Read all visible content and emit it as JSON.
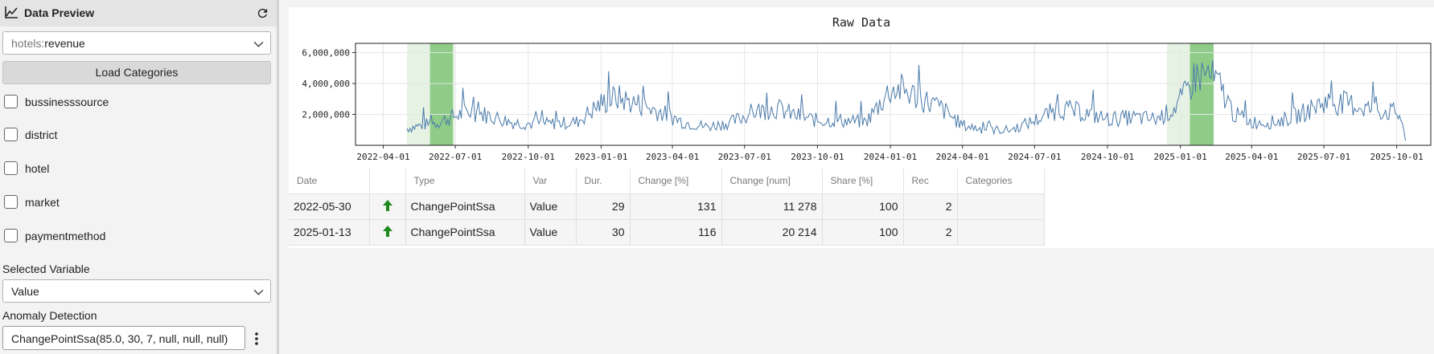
{
  "sidebar": {
    "title": "Data Preview",
    "dataset": {
      "prefix": "hotels:",
      "name": "revenue"
    },
    "load_button": "Load Categories",
    "categories": [
      {
        "label": "bussinesssource",
        "checked": false
      },
      {
        "label": "district",
        "checked": false
      },
      {
        "label": "hotel",
        "checked": false
      },
      {
        "label": "market",
        "checked": false
      },
      {
        "label": "paymentmethod",
        "checked": false
      }
    ],
    "selected_variable_label": "Selected Variable",
    "selected_variable": "Value",
    "anomaly_label": "Anomaly Detection",
    "anomaly_value": "ChangePointSsa(85.0, 30, 7, null, null, null)"
  },
  "icons": {
    "header": "line-chart-icon",
    "refresh": "refresh-icon",
    "menu": "more-vert-icon",
    "up": "arrow-up-icon"
  },
  "colors": {
    "line": "#4a7aaa",
    "band_dark": "#8fcc88",
    "band_light": "#e6f3e4",
    "up_arrow": "#1e8a1e"
  },
  "chart_data": {
    "type": "line",
    "title": "Raw Data",
    "x_ticks": [
      "2022-04-01",
      "2022-07-01",
      "2022-10-01",
      "2023-01-01",
      "2023-04-01",
      "2023-07-01",
      "2023-10-01",
      "2024-01-01",
      "2024-04-01",
      "2024-07-01",
      "2024-10-01",
      "2025-01-01",
      "2025-04-01",
      "2025-07-01",
      "2025-10-01"
    ],
    "y_ticks": [
      "2,000,000",
      "4,000,000",
      "6,000,000"
    ],
    "xlim": [
      "2022-02-25",
      "2025-11-13"
    ],
    "ylim": [
      0,
      6600000
    ],
    "grid": true,
    "highlights": [
      {
        "start": "2022-05-01",
        "end": "2022-06-30",
        "shade": "light"
      },
      {
        "start": "2022-05-30",
        "end": "2022-06-28",
        "shade": "dark"
      },
      {
        "start": "2024-12-15",
        "end": "2025-02-10",
        "shade": "light"
      },
      {
        "start": "2025-01-13",
        "end": "2025-02-12",
        "shade": "dark"
      }
    ],
    "series": [
      {
        "points": [
          [
            "2022-05-01",
            1100000
          ],
          [
            "2022-05-20",
            1300000
          ],
          [
            "2022-06-10",
            1500000
          ],
          [
            "2022-07-01",
            1900000
          ],
          [
            "2022-07-20",
            2200000
          ],
          [
            "2022-08-15",
            1900000
          ],
          [
            "2022-09-10",
            1500000
          ],
          [
            "2022-10-01",
            1400000
          ],
          [
            "2022-11-01",
            1400000
          ],
          [
            "2022-12-01",
            1500000
          ],
          [
            "2023-01-01",
            2700000
          ],
          [
            "2023-01-20",
            3100000
          ],
          [
            "2023-02-15",
            2700000
          ],
          [
            "2023-03-15",
            2200000
          ],
          [
            "2023-04-15",
            1500000
          ],
          [
            "2023-05-15",
            1200000
          ],
          [
            "2023-06-15",
            1500000
          ],
          [
            "2023-07-15",
            2200000
          ],
          [
            "2023-08-10",
            2400000
          ],
          [
            "2023-09-05",
            1900000
          ],
          [
            "2023-10-01",
            1600000
          ],
          [
            "2023-11-01",
            1600000
          ],
          [
            "2023-12-01",
            1500000
          ],
          [
            "2024-01-01",
            3600000
          ],
          [
            "2024-01-15",
            3600000
          ],
          [
            "2024-02-10",
            3000000
          ],
          [
            "2024-03-05",
            2400000
          ],
          [
            "2024-04-01",
            1300000
          ],
          [
            "2024-05-01",
            1000000
          ],
          [
            "2024-06-01",
            1000000
          ],
          [
            "2024-07-01",
            1600000
          ],
          [
            "2024-08-01",
            2400000
          ],
          [
            "2024-09-01",
            2100000
          ],
          [
            "2024-10-01",
            1700000
          ],
          [
            "2024-11-01",
            1800000
          ],
          [
            "2024-12-01",
            1700000
          ],
          [
            "2024-12-20",
            2200000
          ],
          [
            "2025-01-05",
            3100000
          ],
          [
            "2025-01-20",
            4500000
          ],
          [
            "2025-02-05",
            4600000
          ],
          [
            "2025-02-20",
            3800000
          ],
          [
            "2025-03-10",
            2000000
          ],
          [
            "2025-04-01",
            1500000
          ],
          [
            "2025-05-01",
            1500000
          ],
          [
            "2025-06-01",
            2000000
          ],
          [
            "2025-07-01",
            2800000
          ],
          [
            "2025-08-01",
            2700000
          ],
          [
            "2025-09-01",
            2300000
          ],
          [
            "2025-10-01",
            2100000
          ],
          [
            "2025-10-08",
            1600000
          ],
          [
            "2025-10-12",
            300000
          ]
        ]
      }
    ]
  },
  "table": {
    "headers": [
      "Date",
      "",
      "Type",
      "Var",
      "Dur.",
      "Change [%]",
      "Change [num]",
      "Share [%]",
      "Rec",
      "Categories"
    ],
    "rows": [
      {
        "date": "2022-05-30",
        "type": "ChangePointSsa",
        "var": "Value",
        "dur": "29",
        "change_pct": "131",
        "change_num": "11 278",
        "share": "100",
        "rec": "2",
        "categories": ""
      },
      {
        "date": "2025-01-13",
        "type": "ChangePointSsa",
        "var": "Value",
        "dur": "30",
        "change_pct": "116",
        "change_num": "20 214",
        "share": "100",
        "rec": "2",
        "categories": ""
      }
    ]
  }
}
